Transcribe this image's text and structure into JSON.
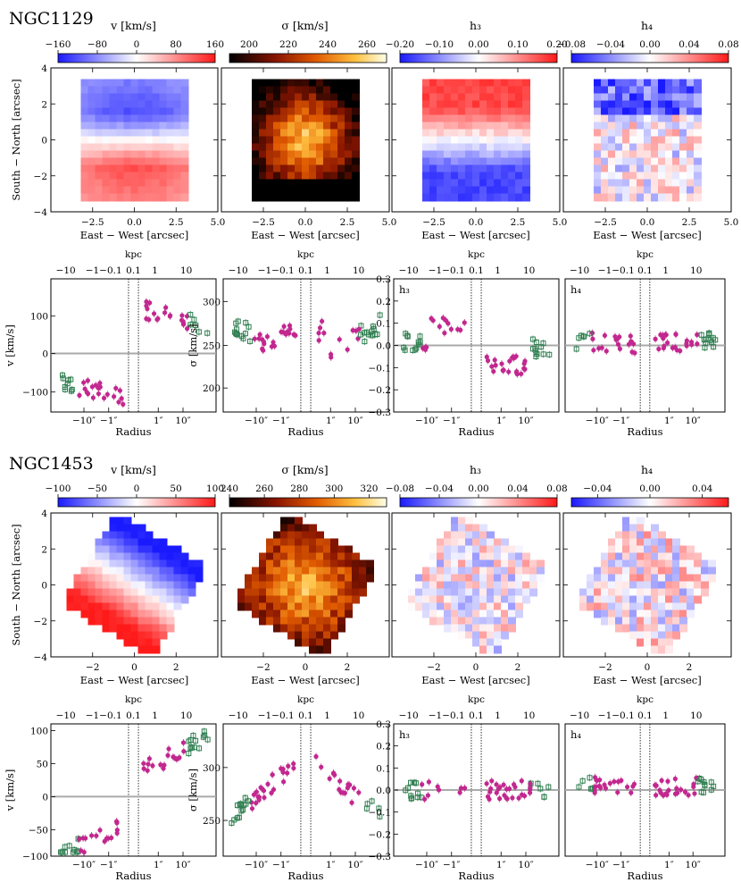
{
  "galaxies": [
    {
      "name": "NGC1129",
      "maps": [
        {
          "title": "v [km/s]",
          "colormap": "bwr",
          "ticks": [
            "−160",
            "−80",
            "0",
            "80",
            "160"
          ],
          "range": [
            -160,
            160
          ]
        },
        {
          "title": "σ [km/s]",
          "colormap": "afmhot",
          "ticks": [
            "200",
            "220",
            "240",
            "260"
          ],
          "range": [
            190,
            270
          ]
        },
        {
          "title": "h₃",
          "colormap": "bwr",
          "ticks": [
            "−0.20",
            "−0.10",
            "0.00",
            "0.10",
            "0.20"
          ],
          "range": [
            -0.2,
            0.2
          ]
        },
        {
          "title": "h₄",
          "colormap": "bwr",
          "ticks": [
            "−0.08",
            "−0.04",
            "0.00",
            "0.04",
            "0.08"
          ],
          "range": [
            -0.08,
            0.08
          ]
        }
      ],
      "map_xticks": [
        "−2.5",
        "0.0",
        "2.5",
        "5.0"
      ],
      "map_yticks": [
        "4",
        "2",
        "0",
        "−2",
        "−4"
      ],
      "map_xlabel": "East − West [arcsec]",
      "map_ylabel": "South − North [arcsec]",
      "profiles": [
        {
          "ylabel": "v [km/s]",
          "yticks": [
            "100",
            "0",
            "−100"
          ],
          "inner_label": ""
        },
        {
          "ylabel": "σ [km/s]",
          "yticks": [
            "300",
            "250",
            "200"
          ],
          "inner_label": ""
        },
        {
          "ylabel": "",
          "yticks": [
            "0.3",
            "0.2",
            "0.1",
            "0.0",
            "−0.1",
            "−0.2",
            "−0.3"
          ],
          "inner_label": "h₃"
        },
        {
          "ylabel": "",
          "yticks": [],
          "inner_label": "h₄"
        }
      ]
    },
    {
      "name": "NGC1453",
      "maps": [
        {
          "title": "v [km/s]",
          "colormap": "bwr",
          "ticks": [
            "−100",
            "−50",
            "0",
            "50",
            "100"
          ],
          "range": [
            -100,
            100
          ]
        },
        {
          "title": "σ [km/s]",
          "colormap": "afmhot",
          "ticks": [
            "240",
            "260",
            "280",
            "300",
            "320"
          ],
          "range": [
            240,
            330
          ]
        },
        {
          "title": "h₃",
          "colormap": "bwr",
          "ticks": [
            "−0.08",
            "−0.04",
            "0.00",
            "0.04",
            "0.08"
          ],
          "range": [
            -0.08,
            0.08
          ]
        },
        {
          "title": "h₄",
          "colormap": "bwr",
          "ticks": [
            "−0.04",
            "0.00",
            "0.04"
          ],
          "range": [
            -0.06,
            0.06
          ]
        }
      ],
      "map_xticks": [
        "−2",
        "0",
        "2"
      ],
      "map_yticks": [
        "4",
        "2",
        "0",
        "−2",
        "−4"
      ],
      "map_xlabel": "East − West [arcsec]",
      "map_ylabel": "South − North [arcsec]",
      "profiles": [
        {
          "ylabel": "v [km/s]",
          "yticks": [
            "100",
            "50",
            "0",
            "−50",
            "−100"
          ],
          "inner_label": ""
        },
        {
          "ylabel": "σ [km/s]",
          "yticks": [
            "300",
            "250"
          ],
          "inner_label": ""
        },
        {
          "ylabel": "",
          "yticks": [
            "0.3",
            "0.2",
            "0.1",
            "0.0",
            "−0.1",
            "−0.2",
            "−0.3"
          ],
          "inner_label": "h₃"
        },
        {
          "ylabel": "",
          "yticks": [],
          "inner_label": "h₄"
        }
      ]
    }
  ],
  "profile_xticks": [
    "−10″",
    "−1″",
    "1″",
    "10″"
  ],
  "profile_xlabel": "Radius",
  "kpc_label": "kpc",
  "kpc_ticks": [
    "−10",
    "−1−0.1",
    "0.1",
    "1",
    "10"
  ]
}
